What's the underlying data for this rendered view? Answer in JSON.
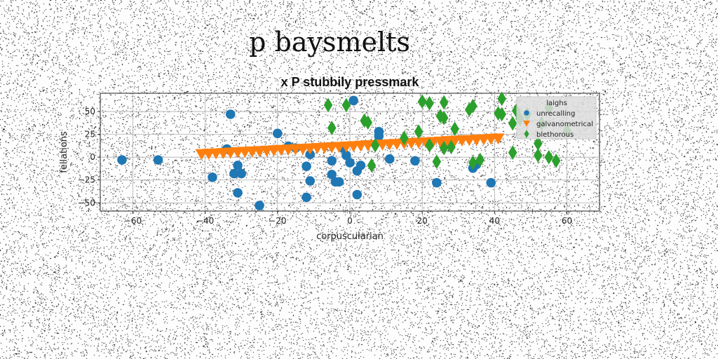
{
  "suptitle": "p baysmelts",
  "chart_data": {
    "type": "scatter",
    "title": "x P stubbily pressmark",
    "xlabel": "corpuscularian",
    "ylabel": "fellations",
    "xlim": [
      -69,
      69
    ],
    "ylim": [
      -59,
      70
    ],
    "xticks": [
      -60,
      -40,
      -20,
      0,
      20,
      40,
      60
    ],
    "yticks": [
      -50,
      -25,
      0,
      25,
      50
    ],
    "grid": true,
    "legend": {
      "position": "top-right",
      "title": "laighs"
    },
    "series": [
      {
        "name": "unrecalling",
        "marker": "circle",
        "color": "#1f77b4",
        "points": [
          [
            -63,
            -3
          ],
          [
            -53,
            -3
          ],
          [
            -38,
            -22
          ],
          [
            -34,
            9
          ],
          [
            -33,
            47
          ],
          [
            -32,
            -18
          ],
          [
            -31,
            -9
          ],
          [
            -31,
            -39
          ],
          [
            -30,
            -18
          ],
          [
            -25,
            -53
          ],
          [
            -20,
            26
          ],
          [
            -17,
            12
          ],
          [
            -15,
            10
          ],
          [
            -12,
            -10
          ],
          [
            -11,
            3
          ],
          [
            -12,
            -44
          ],
          [
            -11,
            -26
          ],
          [
            -5,
            -4
          ],
          [
            -5,
            -19
          ],
          [
            -4,
            -27
          ],
          [
            -3,
            -27
          ],
          [
            -2,
            10
          ],
          [
            -1,
            2
          ],
          [
            0,
            -6
          ],
          [
            1,
            62
          ],
          [
            2,
            -15
          ],
          [
            2,
            -41
          ],
          [
            3,
            -9
          ],
          [
            8,
            23
          ],
          [
            8,
            28
          ],
          [
            11,
            -2
          ],
          [
            18,
            -4
          ],
          [
            24,
            -28
          ],
          [
            34,
            -12
          ],
          [
            35,
            -8
          ],
          [
            39,
            -28
          ]
        ]
      },
      {
        "name": "galvanometrical",
        "marker": "triangle-down",
        "color": "#ff7f0e",
        "points": [
          [
            -41,
            3.3
          ],
          [
            -39,
            3.7
          ],
          [
            -37,
            4.1
          ],
          [
            -35,
            4.5
          ],
          [
            -33,
            5.0
          ],
          [
            -31,
            5.4
          ],
          [
            -29,
            5.8
          ],
          [
            -27,
            6.2
          ],
          [
            -25,
            6.6
          ],
          [
            -23,
            7.0
          ],
          [
            -21,
            7.5
          ],
          [
            -19,
            7.9
          ],
          [
            -17,
            8.3
          ],
          [
            -15,
            8.7
          ],
          [
            -13,
            9.1
          ],
          [
            -11,
            9.5
          ],
          [
            -9,
            10.0
          ],
          [
            -7,
            10.4
          ],
          [
            -5,
            10.8
          ],
          [
            -3,
            11.2
          ],
          [
            -1,
            11.6
          ],
          [
            1,
            12.0
          ],
          [
            3,
            12.5
          ],
          [
            5,
            12.9
          ],
          [
            7,
            13.3
          ],
          [
            9,
            13.7
          ],
          [
            11,
            14.1
          ],
          [
            13,
            14.5
          ],
          [
            15,
            15.0
          ],
          [
            17,
            15.4
          ],
          [
            19,
            15.8
          ],
          [
            21,
            16.2
          ],
          [
            23,
            16.6
          ],
          [
            25,
            17.0
          ],
          [
            27,
            17.5
          ],
          [
            29,
            17.9
          ],
          [
            31,
            18.3
          ],
          [
            33,
            18.7
          ],
          [
            35,
            19.1
          ],
          [
            37,
            19.5
          ],
          [
            39,
            20.0
          ],
          [
            41,
            20.4
          ]
        ]
      },
      {
        "name": "blethorous",
        "marker": "diamond",
        "color": "#2ca02c",
        "points": [
          [
            -6,
            57
          ],
          [
            -5,
            32
          ],
          [
            -1,
            57
          ],
          [
            4,
            40
          ],
          [
            5,
            38
          ],
          [
            6,
            -9
          ],
          [
            7,
            13
          ],
          [
            15,
            21
          ],
          [
            19,
            28
          ],
          [
            20,
            61
          ],
          [
            22,
            13
          ],
          [
            22,
            59
          ],
          [
            24,
            -5
          ],
          [
            25,
            45
          ],
          [
            26,
            43
          ],
          [
            26,
            10
          ],
          [
            26,
            60
          ],
          [
            28,
            11
          ],
          [
            29,
            31
          ],
          [
            33,
            52
          ],
          [
            34,
            56
          ],
          [
            34,
            -6
          ],
          [
            36,
            -3
          ],
          [
            41,
            48
          ],
          [
            42,
            64
          ],
          [
            42,
            47
          ],
          [
            45,
            37
          ],
          [
            45,
            5
          ],
          [
            46,
            51
          ],
          [
            47,
            42
          ],
          [
            49,
            47
          ],
          [
            52,
            2
          ],
          [
            52,
            15
          ],
          [
            53,
            37
          ],
          [
            55,
            54
          ],
          [
            55,
            0
          ],
          [
            57,
            -4
          ],
          [
            60,
            29
          ]
        ]
      }
    ]
  }
}
